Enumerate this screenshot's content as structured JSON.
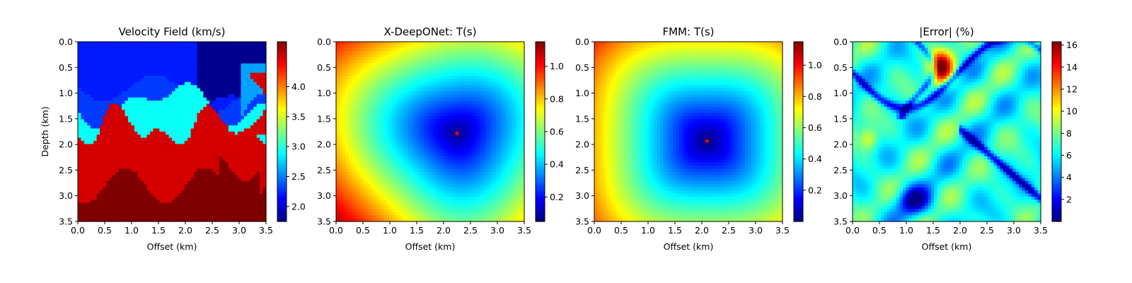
{
  "chart_data": [
    {
      "type": "heatmap",
      "title": "Velocity Field (km/s)",
      "xlabel": "Offset (km)",
      "ylabel": "Depth (km)",
      "xlim": [
        0,
        3.5
      ],
      "ylim": [
        3.5,
        0
      ],
      "x_ticks": [
        "0.0",
        "0.5",
        "1.0",
        "1.5",
        "2.0",
        "2.5",
        "3.0",
        "3.5"
      ],
      "y_ticks": [
        "0.0",
        "0.5",
        "1.0",
        "1.5",
        "2.0",
        "2.5",
        "3.0",
        "3.5"
      ],
      "colormap": "jet",
      "color_range": [
        1.75,
        4.75
      ],
      "colorbar_ticks": [
        "2.0",
        "2.5",
        "3.0",
        "3.5",
        "4.0"
      ],
      "layers": [
        {
          "depth_km": 0.0,
          "velocity_kms": 2.2
        },
        {
          "depth_km": 0.9,
          "velocity_kms": 2.3
        },
        {
          "depth_km": 1.2,
          "velocity_kms": 2.9
        },
        {
          "depth_km": 1.85,
          "velocity_kms": 4.5
        },
        {
          "depth_km": 2.8,
          "velocity_kms": 4.75
        }
      ]
    },
    {
      "type": "heatmap",
      "title": "X-DeepONet: T(s)",
      "xlabel": "Offset (km)",
      "ylabel": "",
      "xlim": [
        0,
        3.5
      ],
      "ylim": [
        3.5,
        0
      ],
      "x_ticks": [
        "0.0",
        "0.5",
        "1.0",
        "1.5",
        "2.0",
        "2.5",
        "3.0",
        "3.5"
      ],
      "y_ticks": [
        "0.0",
        "0.5",
        "1.0",
        "1.5",
        "2.0",
        "2.5",
        "3.0",
        "3.5"
      ],
      "colormap": "jet",
      "color_range": [
        0.05,
        1.15
      ],
      "colorbar_ticks": [
        "0.2",
        "0.4",
        "0.6",
        "0.8",
        "1.0"
      ],
      "source": {
        "x_km": 2.25,
        "depth_km": 1.78
      }
    },
    {
      "type": "heatmap",
      "title": "FMM: T(s)",
      "xlabel": "Offset (km)",
      "ylabel": "",
      "xlim": [
        0,
        3.5
      ],
      "ylim": [
        3.5,
        0
      ],
      "x_ticks": [
        "0.0",
        "0.5",
        "1.0",
        "1.5",
        "2.0",
        "2.5",
        "3.0",
        "3.5"
      ],
      "y_ticks": [
        "0.0",
        "0.5",
        "1.0",
        "1.5",
        "2.0",
        "2.5",
        "3.0",
        "3.5"
      ],
      "colormap": "jet",
      "color_range": [
        0.0,
        1.15
      ],
      "colorbar_ticks": [
        "0.2",
        "0.4",
        "0.6",
        "0.8",
        "1.0"
      ],
      "source": {
        "x_km": 2.1,
        "depth_km": 1.93
      }
    },
    {
      "type": "heatmap",
      "title": "|Error| (%)",
      "xlabel": "Offset (km)",
      "ylabel": "",
      "xlim": [
        0,
        3.5
      ],
      "ylim": [
        3.5,
        0
      ],
      "x_ticks": [
        "0.0",
        "0.5",
        "1.0",
        "1.5",
        "2.0",
        "2.5",
        "3.0",
        "3.5"
      ],
      "y_ticks": [
        "0.0",
        "0.5",
        "1.0",
        "1.5",
        "2.0",
        "2.5",
        "3.0",
        "3.5"
      ],
      "colormap": "jet",
      "color_range": [
        0,
        16.3
      ],
      "colorbar_ticks": [
        "2",
        "4",
        "6",
        "8",
        "10",
        "12",
        "14",
        "16"
      ],
      "max_error": {
        "x_km": 1.65,
        "depth_km": 0.5,
        "value": 16
      }
    }
  ]
}
